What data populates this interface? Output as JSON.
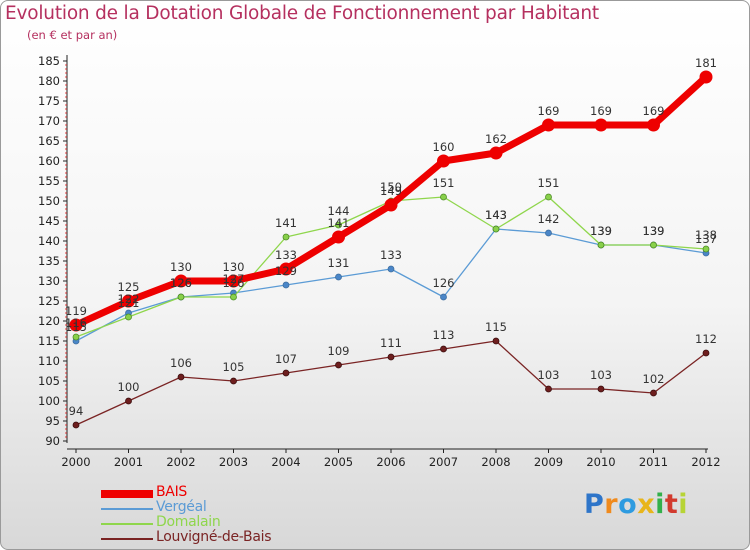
{
  "chart_data": {
    "type": "line",
    "title": "Evolution de la Dotation Globale de Fonctionnement par Habitant",
    "subtitle": "(en € et par an)",
    "categories": [
      "2000",
      "2001",
      "2002",
      "2003",
      "2004",
      "2005",
      "2006",
      "2007",
      "2008",
      "2009",
      "2010",
      "2011",
      "2012"
    ],
    "ylim": [
      90,
      185
    ],
    "yticks": [
      90,
      95,
      100,
      105,
      110,
      115,
      120,
      125,
      130,
      135,
      140,
      145,
      150,
      155,
      160,
      165,
      170,
      175,
      180,
      185
    ],
    "grid": false,
    "legend_position": "bottom-left",
    "series": [
      {
        "name": "BAIS",
        "color": "#ee0000",
        "values": [
          119,
          125,
          130,
          130,
          133,
          141,
          149,
          160,
          162,
          169,
          169,
          169,
          181
        ],
        "labels": [
          "119",
          "125",
          "130",
          "130",
          "133",
          "141",
          "149",
          "160",
          "162",
          "169",
          "169",
          "169",
          "181"
        ]
      },
      {
        "name": "Vergéal",
        "color": "#5b9bd5",
        "values": [
          115,
          122,
          126,
          127,
          129,
          131,
          133,
          126,
          143,
          142,
          139,
          139,
          137
        ],
        "labels": [
          "115",
          "122",
          "126",
          "127",
          "129",
          "131",
          "133",
          "126",
          "143",
          "142",
          "139",
          "139",
          "137"
        ]
      },
      {
        "name": "Domalain",
        "color": "#8fd64c",
        "values": [
          116,
          121,
          126,
          126,
          141,
          144,
          150,
          151,
          143,
          151,
          139,
          139,
          138
        ],
        "labels": [
          "116",
          "121",
          "126",
          "126",
          "141",
          "144",
          "150",
          "151",
          "143",
          "151",
          "139",
          "139",
          "138"
        ]
      },
      {
        "name": "Louvigné-de-Bais",
        "color": "#7a2424",
        "values": [
          94,
          100,
          106,
          105,
          107,
          109,
          111,
          113,
          115,
          103,
          103,
          102,
          112
        ],
        "labels": [
          "94",
          "100",
          "106",
          "105",
          "107",
          "109",
          "111",
          "113",
          "115",
          "103",
          "103",
          "102",
          "112"
        ]
      }
    ]
  },
  "brand": {
    "letters": [
      "P",
      "r",
      "o",
      "x",
      "i",
      "t",
      "i"
    ],
    "colors": [
      "#2e75c9",
      "#f08a1c",
      "#2e9be0",
      "#e8b51a",
      "#33b04a",
      "#d23a2e",
      "#b7d435"
    ]
  }
}
